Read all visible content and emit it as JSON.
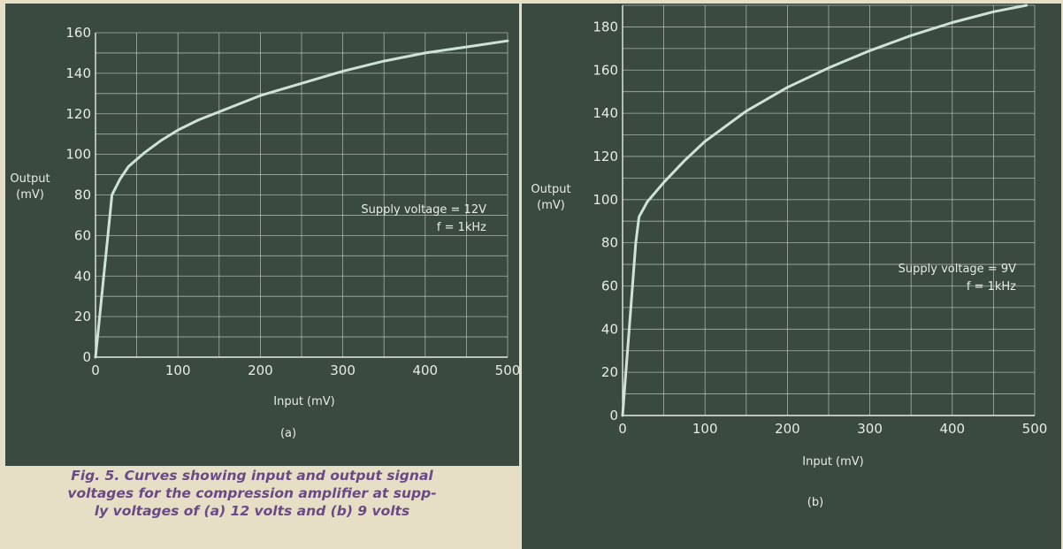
{
  "figure": {
    "caption_lines": [
      "Fig. 5. Curves showing input and output signal",
      "voltages for the compression amplifier at supp-",
      "ly voltages of (a) 12 volts and (b) 9 volts"
    ]
  },
  "chart_data": [
    {
      "type": "line",
      "panel_label": "(a)",
      "xlabel": "Input (mV)",
      "ylabel_lines": [
        "Output",
        "(mV)"
      ],
      "xlim": [
        0,
        500
      ],
      "ylim": [
        0,
        160
      ],
      "x_ticks": [
        0,
        100,
        200,
        300,
        400,
        500
      ],
      "x_tick_labels": [
        "0",
        "100",
        "200",
        "300",
        "400",
        "500"
      ],
      "y_ticks": [
        0,
        20,
        40,
        60,
        80,
        100,
        120,
        140,
        160
      ],
      "y_tick_labels": [
        "0",
        "20",
        "40",
        "60",
        "80",
        "100",
        "120",
        "140",
        "160"
      ],
      "grid": true,
      "annotation_lines": [
        "Supply voltage = 12V",
        "f = 1kHz"
      ],
      "series": [
        {
          "color": "#cfe2d8",
          "points": [
            [
              0,
              0
            ],
            [
              5,
              20
            ],
            [
              10,
              40
            ],
            [
              15,
              60
            ],
            [
              20,
              80
            ],
            [
              30,
              88
            ],
            [
              40,
              94
            ],
            [
              60,
              101
            ],
            [
              80,
              107
            ],
            [
              100,
              112
            ],
            [
              125,
              117
            ],
            [
              150,
              121
            ],
            [
              200,
              129
            ],
            [
              250,
              135
            ],
            [
              300,
              141
            ],
            [
              350,
              146
            ],
            [
              400,
              150
            ],
            [
              450,
              153
            ],
            [
              500,
              156
            ]
          ]
        }
      ]
    },
    {
      "type": "line",
      "panel_label": "(b)",
      "xlabel": "Input (mV)",
      "ylabel_lines": [
        "Output",
        "(mV)"
      ],
      "xlim": [
        0,
        500
      ],
      "ylim": [
        0,
        190
      ],
      "x_ticks": [
        0,
        100,
        200,
        300,
        400,
        500
      ],
      "x_tick_labels": [
        "0",
        "100",
        "200",
        "300",
        "400",
        "500"
      ],
      "y_ticks": [
        0,
        20,
        40,
        60,
        80,
        100,
        120,
        140,
        160,
        180
      ],
      "y_tick_labels": [
        "0",
        "20",
        "40",
        "60",
        "80",
        "100",
        "120",
        "140",
        "160",
        "180"
      ],
      "grid": true,
      "annotation_lines": [
        "Supply voltage = 9V",
        "f = 1kHz"
      ],
      "series": [
        {
          "color": "#cfe2d8",
          "points": [
            [
              0,
              0
            ],
            [
              4,
              20
            ],
            [
              8,
              40
            ],
            [
              12,
              60
            ],
            [
              16,
              80
            ],
            [
              20,
              92
            ],
            [
              30,
              99
            ],
            [
              50,
              108
            ],
            [
              75,
              118
            ],
            [
              100,
              127
            ],
            [
              150,
              141
            ],
            [
              200,
              152
            ],
            [
              250,
              161
            ],
            [
              300,
              169
            ],
            [
              350,
              176
            ],
            [
              400,
              182
            ],
            [
              450,
              187
            ],
            [
              490,
              190
            ]
          ]
        }
      ]
    }
  ]
}
